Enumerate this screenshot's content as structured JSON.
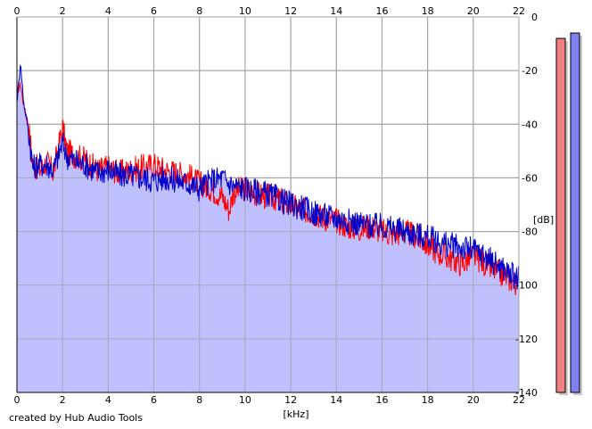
{
  "credit": "created by Hub Audio Tools",
  "chart_data": {
    "type": "line",
    "xlabel": "[kHz]",
    "ylabel": "[dB]",
    "xlim": [
      0,
      22
    ],
    "ylim": [
      -140,
      0
    ],
    "x_ticks": [
      0,
      2,
      4,
      6,
      8,
      10,
      12,
      14,
      16,
      18,
      20,
      22
    ],
    "y_ticks": [
      0,
      -20,
      -40,
      -60,
      -80,
      -100,
      -120,
      -140
    ],
    "y_tick_labels": [
      "0",
      "-20",
      "-40",
      "-60",
      "-80",
      "-100",
      "-120",
      "-140"
    ],
    "grid": true,
    "fill_color": "#c0c0ff",
    "series": [
      {
        "color": "#ff0000",
        "x": [
          0.02,
          0.15,
          0.3,
          0.5,
          0.7,
          1.0,
          1.3,
          1.6,
          2.0,
          2.2,
          2.6,
          3.0,
          3.5,
          4.0,
          4.5,
          5.0,
          5.5,
          6.0,
          6.5,
          7.0,
          7.5,
          8.0,
          8.5,
          9.0,
          9.3,
          9.5,
          10.0,
          10.5,
          11.0,
          11.5,
          12.0,
          12.5,
          13.0,
          13.5,
          14.0,
          14.5,
          15.0,
          15.5,
          16.0,
          16.5,
          17.0,
          17.5,
          18.0,
          18.5,
          19.0,
          19.5,
          20.0,
          20.5,
          21.0,
          21.5,
          22.0
        ],
        "y": [
          -28,
          -25,
          -33,
          -40,
          -55,
          -57,
          -54,
          -58,
          -41,
          -50,
          -52,
          -53,
          -57,
          -56,
          -58,
          -57,
          -56,
          -55,
          -57,
          -58,
          -59,
          -62,
          -64,
          -67,
          -72,
          -65,
          -64,
          -66,
          -67,
          -68,
          -70,
          -72,
          -73,
          -75,
          -76,
          -78,
          -79,
          -78,
          -80,
          -81,
          -80,
          -82,
          -85,
          -88,
          -90,
          -92,
          -89,
          -92,
          -95,
          -97,
          -100
        ]
      },
      {
        "color": "#0000cc",
        "x": [
          0.02,
          0.15,
          0.3,
          0.5,
          0.7,
          1.0,
          1.3,
          1.6,
          2.0,
          2.2,
          2.6,
          3.0,
          3.5,
          4.0,
          4.5,
          5.0,
          5.5,
          6.0,
          6.5,
          7.0,
          7.5,
          8.0,
          8.5,
          9.0,
          9.3,
          9.5,
          10.0,
          10.5,
          11.0,
          11.5,
          12.0,
          12.5,
          13.0,
          13.5,
          14.0,
          14.5,
          15.0,
          15.5,
          16.0,
          16.5,
          17.0,
          17.5,
          18.0,
          18.5,
          19.0,
          19.5,
          20.0,
          20.5,
          21.0,
          21.5,
          22.0
        ],
        "y": [
          -30,
          -17,
          -32,
          -42,
          -56,
          -55,
          -55,
          -57,
          -47,
          -52,
          -54,
          -55,
          -58,
          -57,
          -59,
          -59,
          -60,
          -61,
          -60,
          -61,
          -62,
          -64,
          -61,
          -60,
          -62,
          -63,
          -64,
          -65,
          -66,
          -68,
          -70,
          -71,
          -73,
          -74,
          -75,
          -76,
          -77,
          -78,
          -78,
          -79,
          -80,
          -81,
          -82,
          -84,
          -85,
          -86,
          -87,
          -89,
          -92,
          -95,
          -98
        ]
      }
    ],
    "level_meters": [
      {
        "color": "#f08080",
        "value": -8
      },
      {
        "color": "#8080f0",
        "value": -6
      }
    ]
  }
}
